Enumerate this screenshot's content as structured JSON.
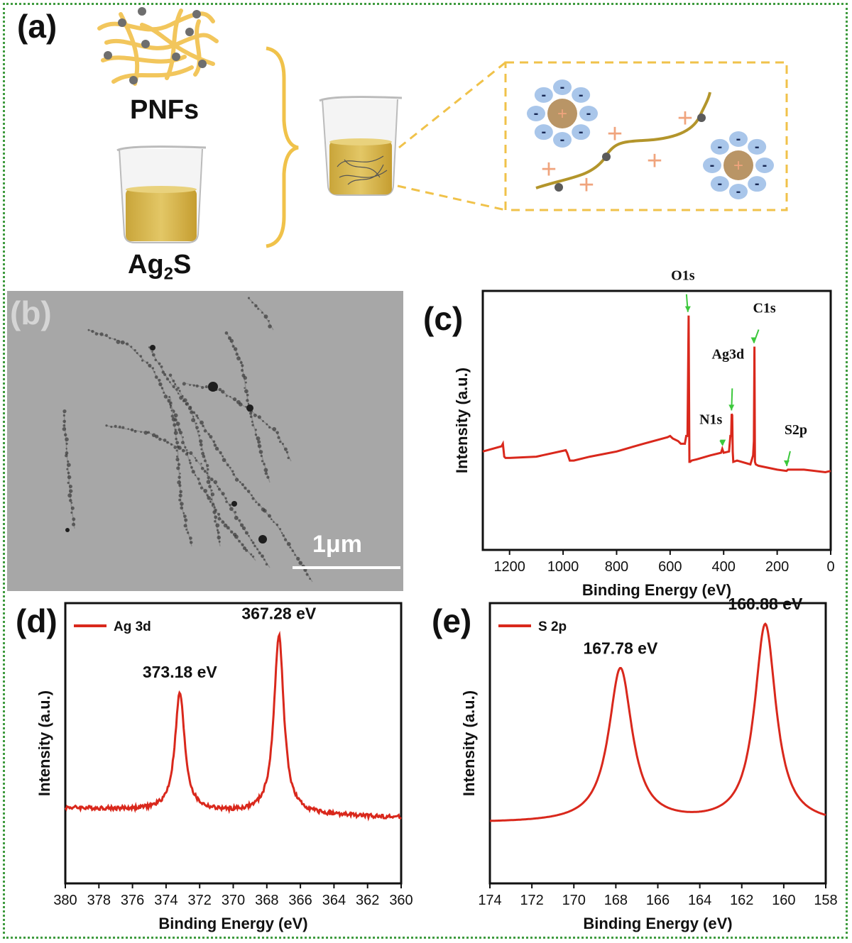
{
  "panel_a": {
    "label": "(a)",
    "pnfs_label": "PNFs",
    "ag2s_main": "Ag",
    "ag2s_sub": "2",
    "ag2s_tail": "S",
    "plus": "+",
    "minus": "-"
  },
  "panel_b": {
    "label": "(b)",
    "scale_bar": "1μm"
  },
  "colors": {
    "red": "#d9281c",
    "yellow": "#f2c04a",
    "blue_ion": "#a9c6ea",
    "core": "#b99566",
    "plus_color": "#f0a47d",
    "arrow_green": "#3cc83c",
    "frame_green": "#3f9b3f"
  },
  "chart_data": [
    {
      "id": "c",
      "label": "(c)",
      "type": "line",
      "xlabel": "Binding Energy (eV)",
      "ylabel": "Intensity (a.u.)",
      "xlim": [
        1300,
        0
      ],
      "xticks": [
        1200,
        1000,
        800,
        600,
        400,
        200,
        0
      ],
      "xtick_labels": [
        "1200",
        "1000",
        "800",
        "600",
        "400",
        "200",
        "0"
      ],
      "ylim": [
        0,
        100
      ],
      "series": [
        {
          "x": [
            1300,
            1230,
            1225,
            1220,
            1215,
            1200,
            1100,
            990,
            985,
            975,
            960,
            900,
            800,
            700,
            610,
            600,
            590,
            570,
            560,
            545,
            540,
            535,
            531,
            528,
            525,
            520,
            500,
            450,
            410,
            405,
            400,
            380,
            375,
            372,
            370,
            368,
            366,
            364,
            350,
            300,
            290,
            287,
            285,
            283,
            280,
            270,
            200,
            165,
            160,
            100,
            20,
            0
          ],
          "y": [
            38.0,
            40.0,
            41.0,
            36.0,
            35.5,
            35.5,
            36.0,
            38.5,
            37.5,
            34.5,
            34.5,
            36.0,
            38.0,
            41.0,
            43.5,
            44.0,
            43.0,
            42.0,
            41.0,
            41.0,
            44.0,
            44.0,
            90.5,
            34.0,
            34.0,
            34.5,
            35.0,
            36.5,
            37.5,
            39.0,
            37.5,
            38.0,
            44.0,
            44.0,
            52.5,
            52.0,
            38.0,
            34.0,
            34.5,
            33.0,
            36.5,
            42.0,
            78.5,
            34.0,
            33.0,
            32.5,
            31.0,
            30.5,
            31.0,
            31.0,
            30.0,
            30.5
          ]
        }
      ],
      "annotations": [
        {
          "text": "O1s",
          "x": 531,
          "y": 90.5
        },
        {
          "text": "Ag3d",
          "x": 368,
          "y": 52.5
        },
        {
          "text": "C1s",
          "x": 285,
          "y": 78.5
        },
        {
          "text": "N1s",
          "x": 400,
          "y": 39.0
        },
        {
          "text": "S2p",
          "x": 162,
          "y": 31.0
        }
      ]
    },
    {
      "id": "d",
      "label": "(d)",
      "type": "line",
      "xlabel": "Binding Energy (eV)",
      "ylabel": "Intensity (a.u.)",
      "xlim": [
        380,
        360
      ],
      "xticks": [
        380,
        378,
        376,
        374,
        372,
        370,
        368,
        366,
        364,
        362,
        360
      ],
      "xtick_labels": [
        "380",
        "378",
        "376",
        "374",
        "372",
        "370",
        "368",
        "366",
        "364",
        "362",
        "360"
      ],
      "ylim": [
        0,
        100
      ],
      "legend": "Ag 3d",
      "legend_position": "top-left",
      "series": [
        {
          "name": "Ag 3d",
          "peaks": [
            {
              "center": 373.18,
              "height": 42.0,
              "width": 0.35
            },
            {
              "center": 367.28,
              "height": 64.0,
              "width": 0.35
            }
          ],
          "baseline": {
            "x0": 380,
            "y0": 27.0,
            "x1": 360,
            "y1": 23.5
          }
        }
      ],
      "annotations": [
        {
          "text": "373.18 eV",
          "x": 373.18
        },
        {
          "text": "367.28 eV",
          "x": 367.28
        }
      ]
    },
    {
      "id": "e",
      "label": "(e)",
      "type": "line",
      "xlabel": "Binding Energy (eV)",
      "ylabel": "Intensity (a.u.)",
      "xlim": [
        174,
        158
      ],
      "xticks": [
        174,
        172,
        170,
        168,
        166,
        164,
        162,
        160,
        158
      ],
      "xtick_labels": [
        "174",
        "172",
        "170",
        "168",
        "166",
        "164",
        "162",
        "160",
        "158"
      ],
      "ylim": [
        0,
        100
      ],
      "legend": "S 2p",
      "legend_position": "top-left",
      "series": [
        {
          "name": "S 2p",
          "peaks": [
            {
              "center": 167.78,
              "height": 55.0,
              "width": 0.68
            },
            {
              "center": 160.88,
              "height": 71.0,
              "width": 0.62
            }
          ],
          "baseline": {
            "x0": 174,
            "y0": 21.5,
            "x1": 158,
            "y1": 21.0
          }
        }
      ],
      "annotations": [
        {
          "text": "167.78 eV",
          "x": 167.78
        },
        {
          "text": "160.88 eV",
          "x": 160.88
        }
      ]
    }
  ]
}
